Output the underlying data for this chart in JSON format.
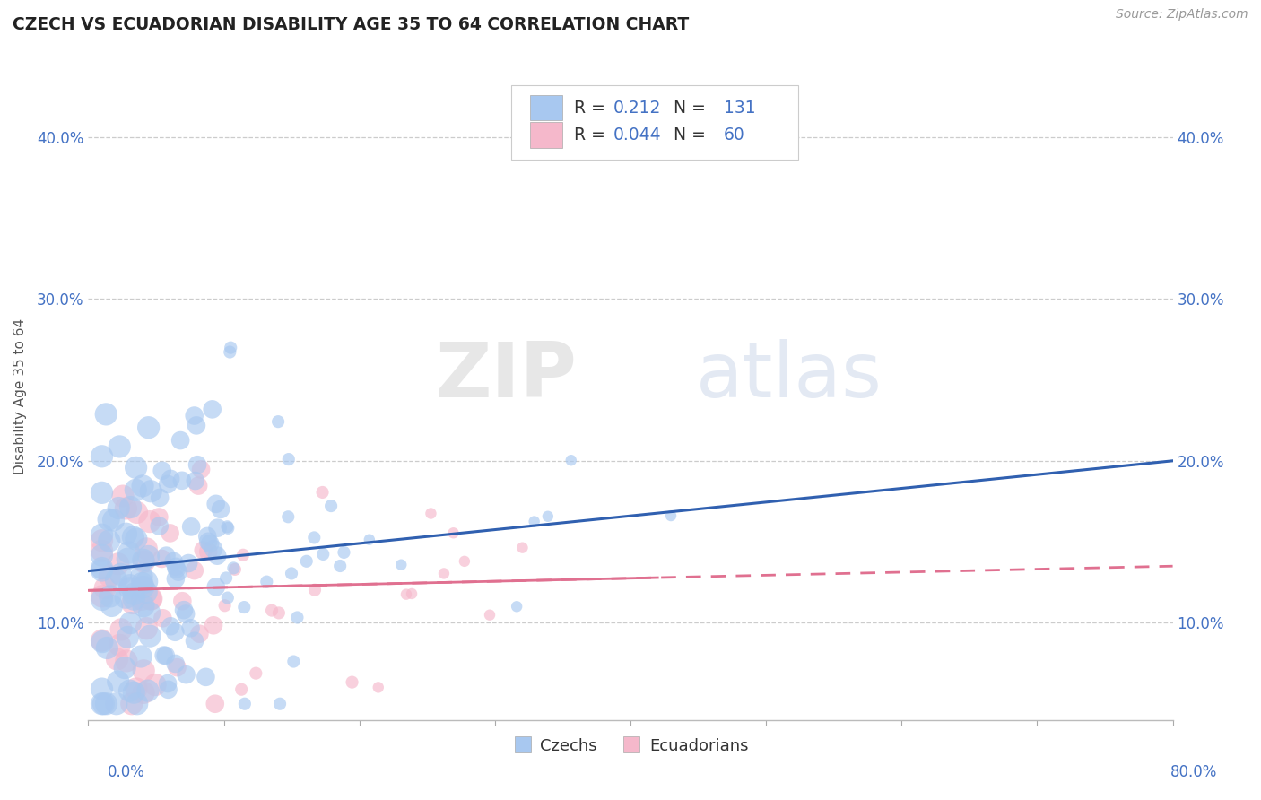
{
  "title": "CZECH VS ECUADORIAN DISABILITY AGE 35 TO 64 CORRELATION CHART",
  "source": "Source: ZipAtlas.com",
  "ylabel": "Disability Age 35 to 64",
  "y_ticks": [
    0.1,
    0.2,
    0.3,
    0.4
  ],
  "y_tick_labels": [
    "10.0%",
    "20.0%",
    "30.0%",
    "40.0%"
  ],
  "xlim": [
    0.0,
    0.8
  ],
  "ylim": [
    0.04,
    0.44
  ],
  "czech_R": 0.212,
  "czech_N": 131,
  "ecuadorian_R": 0.044,
  "ecuadorian_N": 60,
  "czech_color": "#a8c8f0",
  "ecuadorian_color": "#f5b8cb",
  "czech_line_color": "#3060b0",
  "ecuadorian_line_color": "#e07090",
  "watermark_zip": "ZIP",
  "watermark_atlas": "atlas",
  "legend_label_czech": "Czechs",
  "legend_label_ecuadorian": "Ecuadorians",
  "czech_line_start_y": 0.132,
  "czech_line_end_y": 0.2,
  "ecuador_line_start_y": 0.12,
  "ecuador_line_end_y": 0.135
}
